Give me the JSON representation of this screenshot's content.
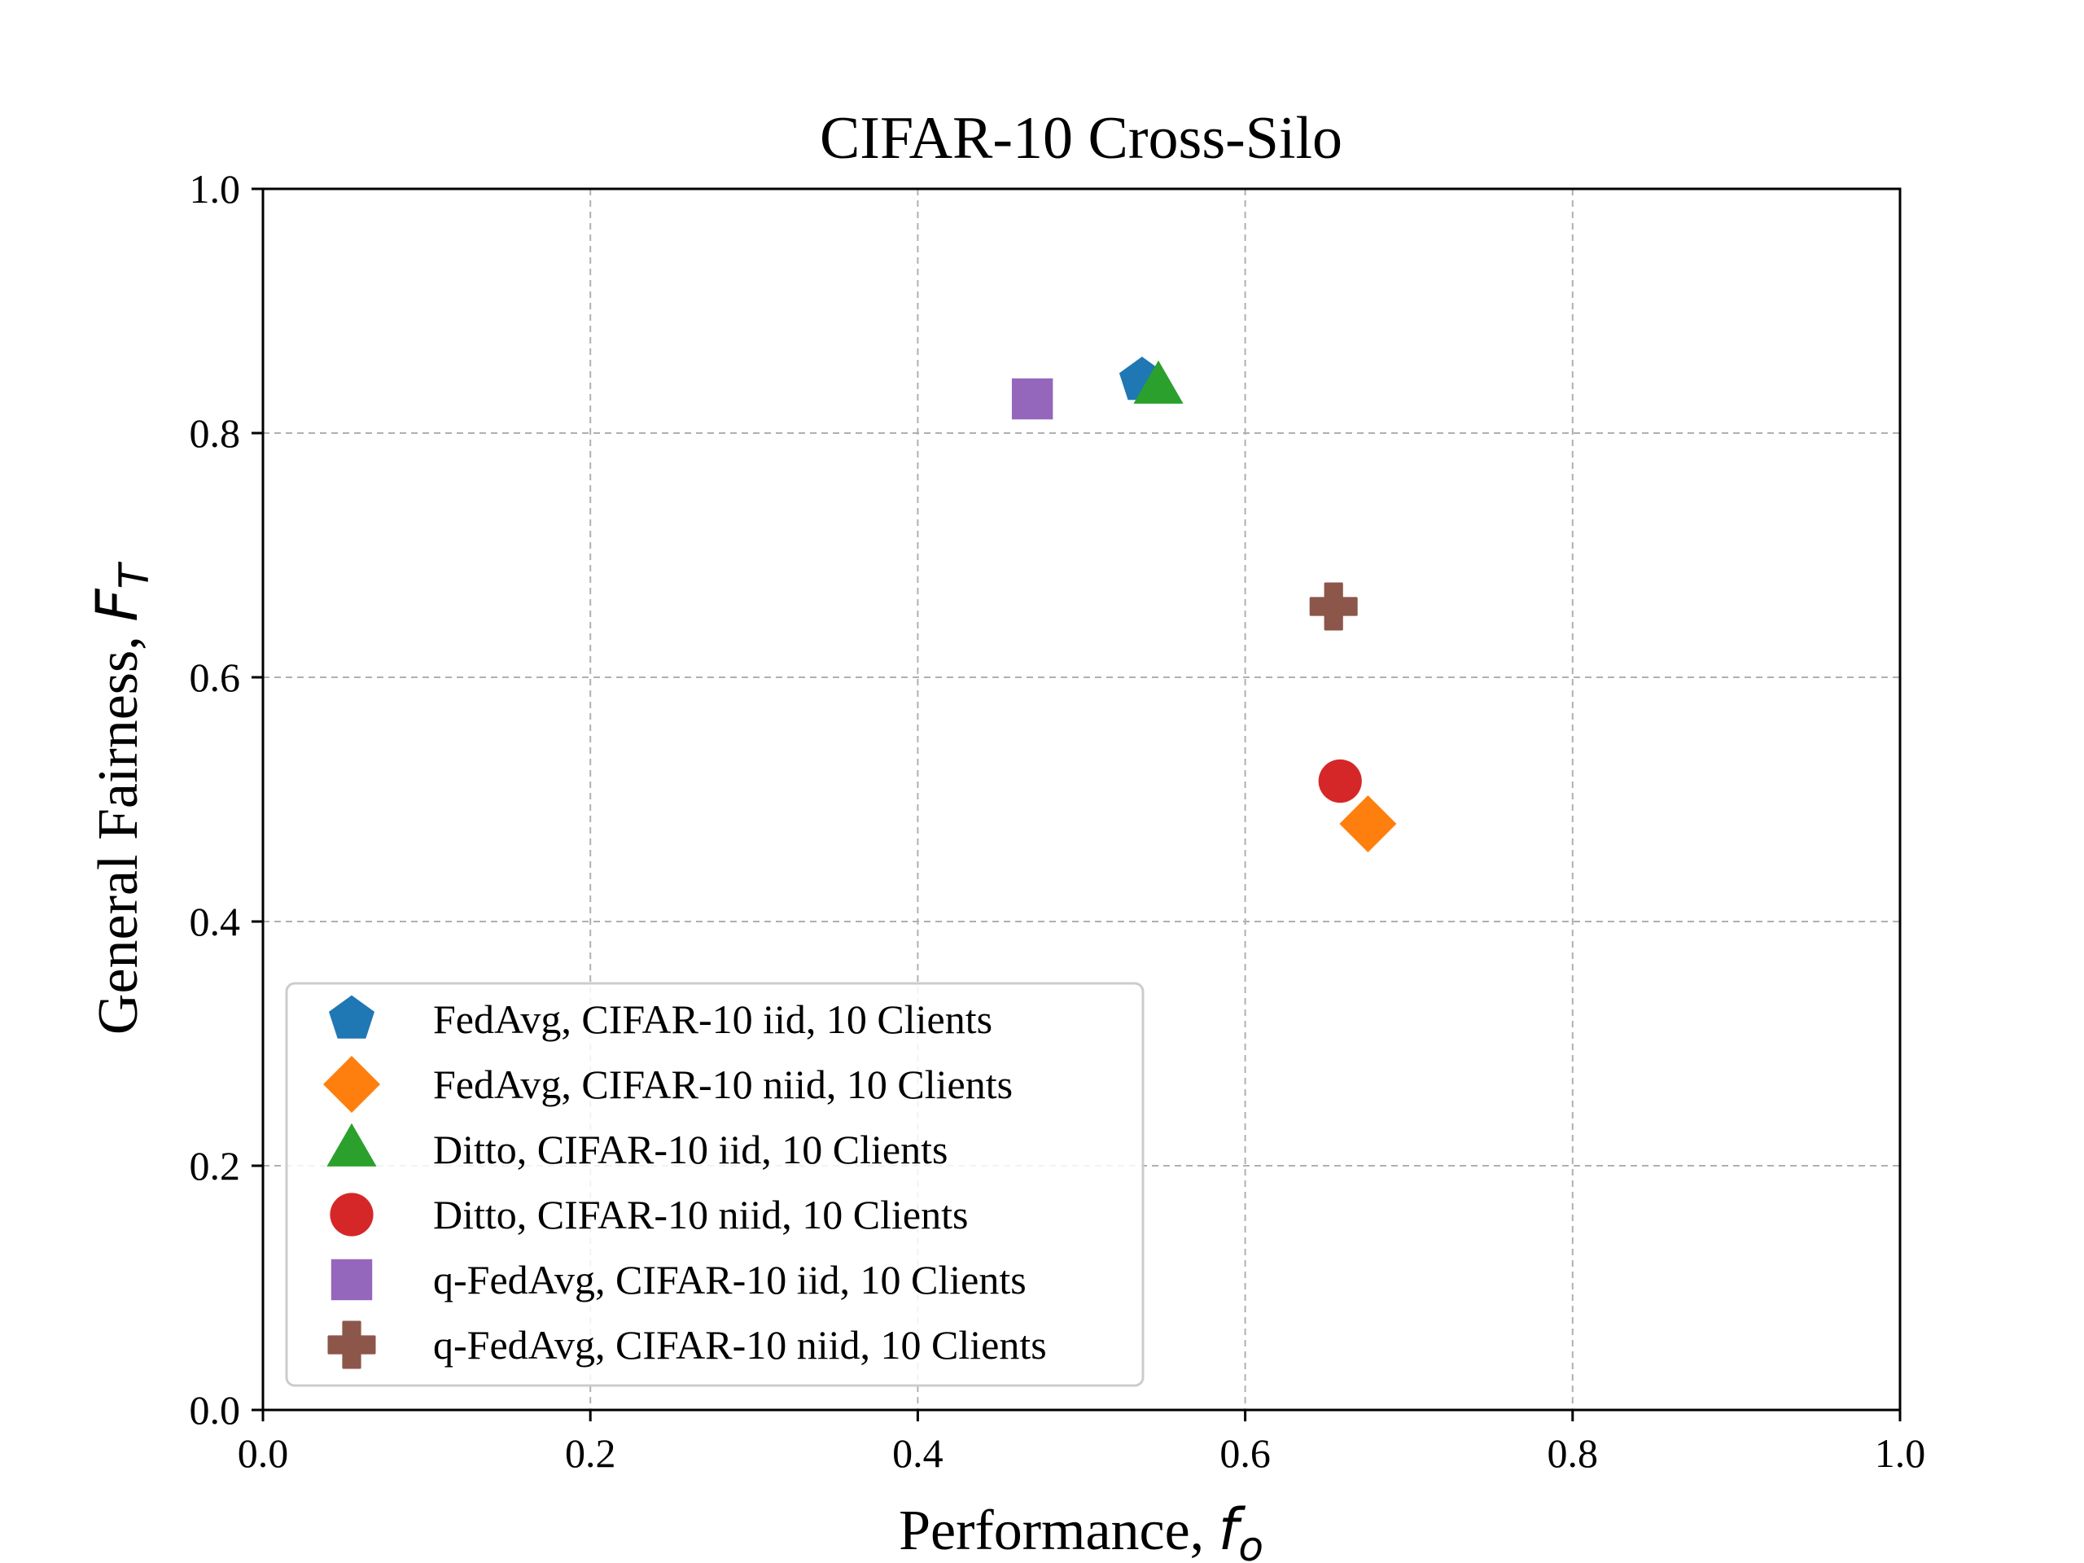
{
  "chart_data": {
    "type": "scatter",
    "title": "CIFAR-10 Cross-Silo",
    "xlabel": "Performance, ",
    "xlabel_symbol": "f",
    "xlabel_sub": "o",
    "ylabel": "General Fairness, ",
    "ylabel_symbol": "F",
    "ylabel_sub": "T",
    "xlim": [
      0.0,
      1.0
    ],
    "ylim": [
      0.0,
      1.0
    ],
    "xticks": [
      "0.0",
      "0.2",
      "0.4",
      "0.6",
      "0.8",
      "1.0"
    ],
    "yticks": [
      "0.0",
      "0.2",
      "0.4",
      "0.6",
      "0.8",
      "1.0"
    ],
    "grid": true,
    "legend_position": "lower-left",
    "series": [
      {
        "name": "FedAvg, CIFAR-10 iid, 10 Clients",
        "marker": "pentagon",
        "color": "#1f77b4",
        "x": 0.537,
        "y": 0.843
      },
      {
        "name": "FedAvg, CIFAR-10 niid, 10 Clients",
        "marker": "diamond",
        "color": "#ff7f0e",
        "x": 0.675,
        "y": 0.48
      },
      {
        "name": "Ditto, CIFAR-10 iid, 10 Clients",
        "marker": "triangle",
        "color": "#2ca02c",
        "x": 0.547,
        "y": 0.838
      },
      {
        "name": "Ditto, CIFAR-10 niid, 10 Clients",
        "marker": "circle",
        "color": "#d62728",
        "x": 0.658,
        "y": 0.515
      },
      {
        "name": "q-FedAvg, CIFAR-10 iid, 10 Clients",
        "marker": "square",
        "color": "#9467bd",
        "x": 0.47,
        "y": 0.828
      },
      {
        "name": "q-FedAvg, CIFAR-10 niid, 10 Clients",
        "marker": "plus",
        "color": "#8c564b",
        "x": 0.654,
        "y": 0.658
      }
    ]
  }
}
